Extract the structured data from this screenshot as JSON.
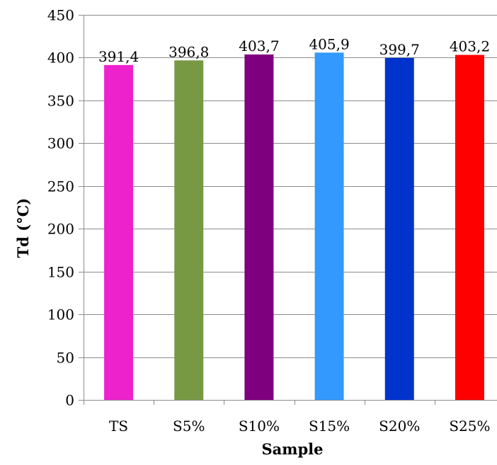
{
  "chart_data": {
    "type": "bar",
    "categories": [
      "TS",
      "S5%",
      "S10%",
      "S15%",
      "S20%",
      "S25%"
    ],
    "values": [
      391.4,
      396.8,
      403.7,
      405.9,
      399.7,
      403.2
    ],
    "data_labels": [
      "391,4",
      "396,8",
      "403,7",
      "405,9",
      "399,7",
      "403,2"
    ],
    "colors": [
      "#EE22CC",
      "#779944",
      "#7F007F",
      "#3399FF",
      "#0033CC",
      "#FF0000"
    ],
    "title": "",
    "xlabel": "Sample",
    "ylabel": "Td (°C)",
    "ylim": [
      0,
      450
    ],
    "yticks": [
      0,
      50,
      100,
      150,
      200,
      250,
      300,
      350,
      400,
      450
    ],
    "ytick_labels": [
      "0",
      "50",
      "100",
      "150",
      "200",
      "250",
      "300",
      "350",
      "400",
      "450"
    ],
    "grid": true,
    "legend": "none"
  }
}
